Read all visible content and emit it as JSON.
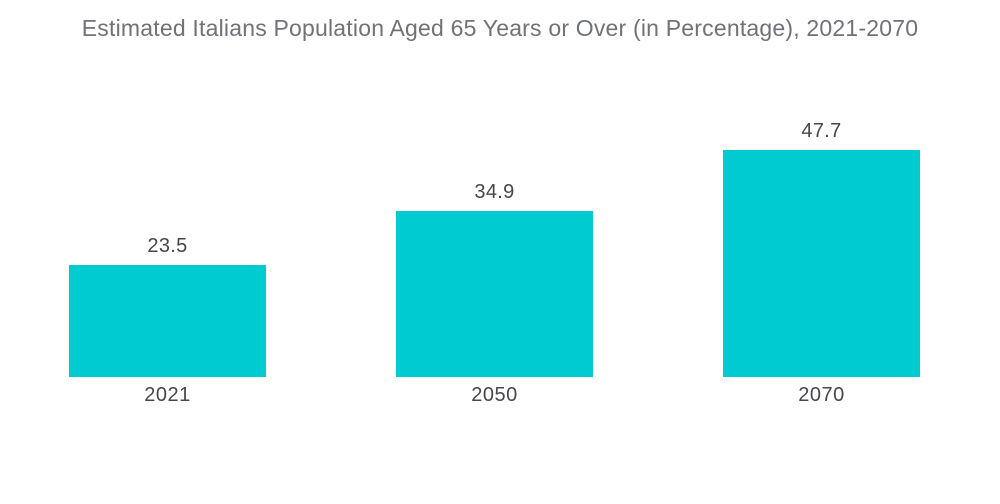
{
  "chart_data": {
    "type": "bar",
    "title": "Estimated Italians Population Aged 65 Years or Over (in Percentage), 2021-2070",
    "categories": [
      "2021",
      "2050",
      "2070"
    ],
    "values": [
      23.5,
      34.9,
      47.7
    ],
    "xlabel": "",
    "ylabel": "",
    "ylim": [
      0,
      50
    ],
    "grid": false,
    "legend": false,
    "axes_visible": false,
    "colors": {
      "bar": "#00CBD1",
      "title_text": "#6F7276",
      "label_text": "#45474A",
      "background": "#FFFFFF"
    }
  }
}
